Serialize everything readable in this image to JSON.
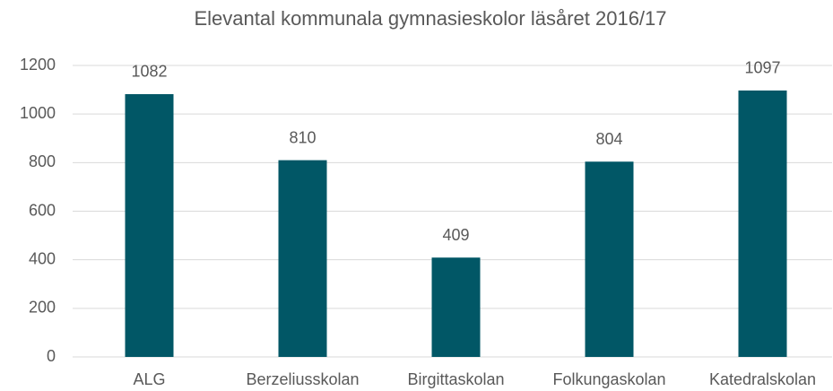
{
  "chart_data": {
    "type": "bar",
    "title": "Elevantal kommunala gymnasieskolor läsåret 2016/17",
    "categories": [
      "ALG",
      "Berzeliusskolan",
      "Birgittaskolan",
      "Folkungaskolan",
      "Katedralskolan"
    ],
    "values": [
      1082,
      810,
      409,
      804,
      1097
    ],
    "color": "#015766",
    "ylim": [
      0,
      1200
    ],
    "yticks": [
      0,
      200,
      400,
      600,
      800,
      1000,
      1200
    ],
    "grid": true
  }
}
